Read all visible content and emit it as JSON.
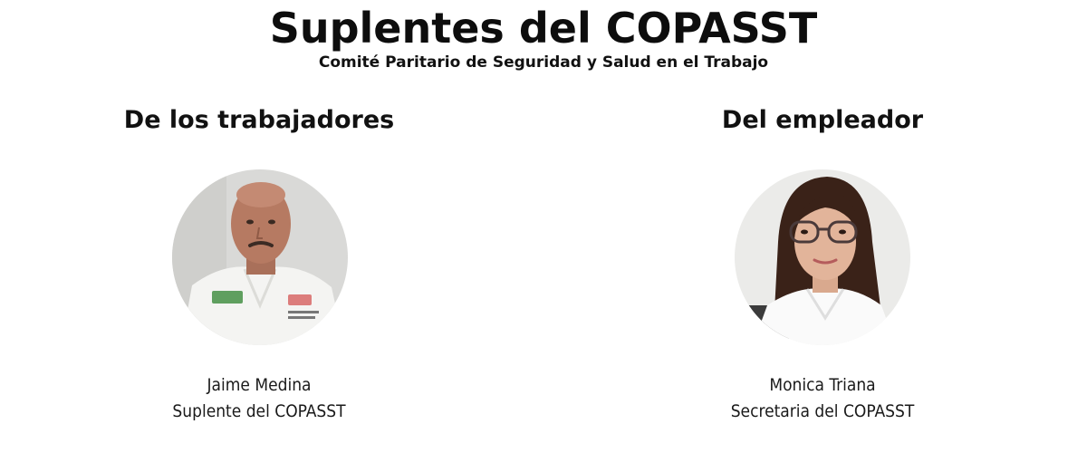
{
  "header": {
    "title": "Suplentes del COPASST",
    "subtitle": "Comité Paritario de Seguridad y Salud en el Trabajo"
  },
  "workers": {
    "heading": "De los trabajadores",
    "member": {
      "name": "Jaime Medina",
      "role": "Suplente del COPASST"
    }
  },
  "employer": {
    "heading": "Del empleador",
    "member": {
      "name": "Monica Triana",
      "role": "Secretaria del COPASST"
    }
  }
}
